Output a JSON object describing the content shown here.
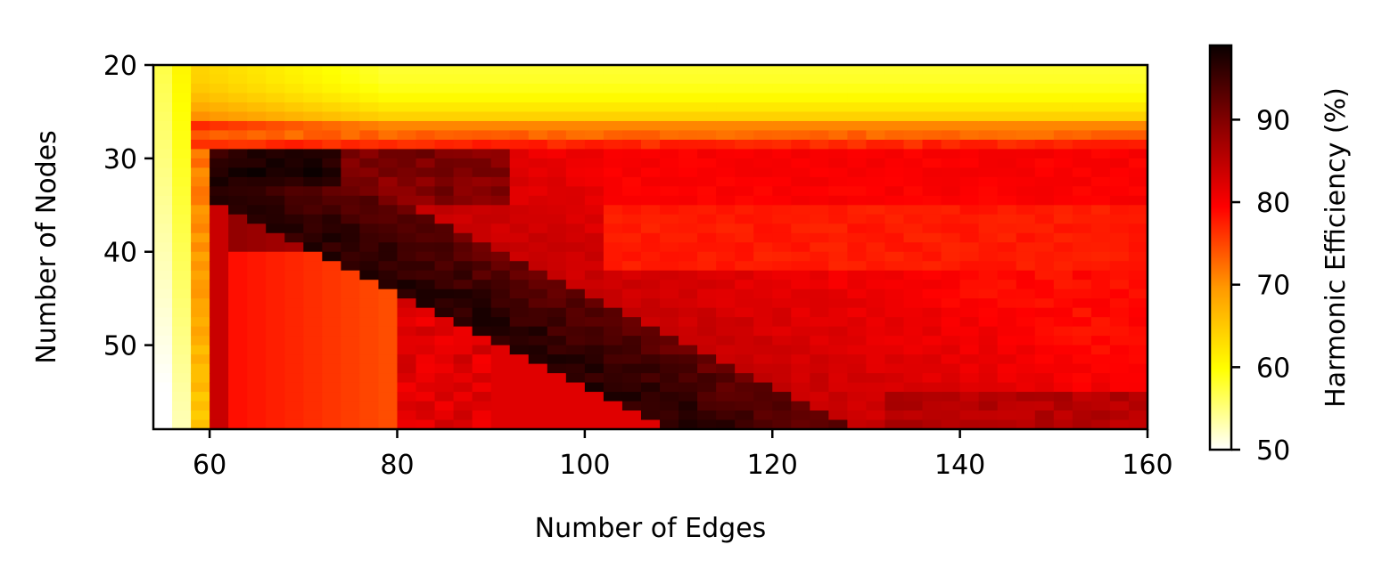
{
  "chart_data": {
    "type": "heatmap",
    "title": "",
    "xlabel": "Number of Edges",
    "ylabel": "Number of Nodes",
    "x_range": [
      54,
      160
    ],
    "y_range": [
      20,
      59
    ],
    "y_inverted": true,
    "x_ticks": [
      "60",
      "80",
      "100",
      "120",
      "140",
      "160"
    ],
    "y_ticks": [
      "20",
      "30",
      "40",
      "50"
    ],
    "colormap": "hot_r",
    "colorbar": {
      "label": "Harmonic Efficiency (%)",
      "range": [
        50,
        99
      ],
      "ticks": [
        "50",
        "60",
        "70",
        "80",
        "90"
      ],
      "colors": [
        "#ffffff",
        "#ffff00",
        "#ff9900",
        "#ff0000",
        "#8b0000",
        "#0a0000"
      ]
    },
    "cell_size": {
      "edges": 2,
      "nodes": 1
    },
    "regions": [
      {
        "description": "small edge count, infeasible/low efficiency",
        "edges": [
          54,
          58
        ],
        "nodes": [
          20,
          59
        ],
        "efficiency": 52
      },
      {
        "description": "small node band",
        "edges": [
          58,
          160
        ],
        "nodes": [
          20,
          27
        ],
        "efficiency": 62
      },
      {
        "description": "peak ridge",
        "edges": [
          62,
          68
        ],
        "nodes": [
          30,
          32
        ],
        "efficiency": 99
      },
      {
        "description": "dark diagonal band",
        "edges": [
          90,
          130
        ],
        "nodes": [
          42,
          59
        ],
        "efficiency": 94
      },
      {
        "description": "upper right plateau",
        "edges": [
          100,
          160
        ],
        "nodes": [
          29,
          41
        ],
        "efficiency": 78
      },
      {
        "description": "left column lower",
        "edges": [
          60,
          80
        ],
        "nodes": [
          40,
          59
        ],
        "efficiency": 76
      }
    ]
  }
}
